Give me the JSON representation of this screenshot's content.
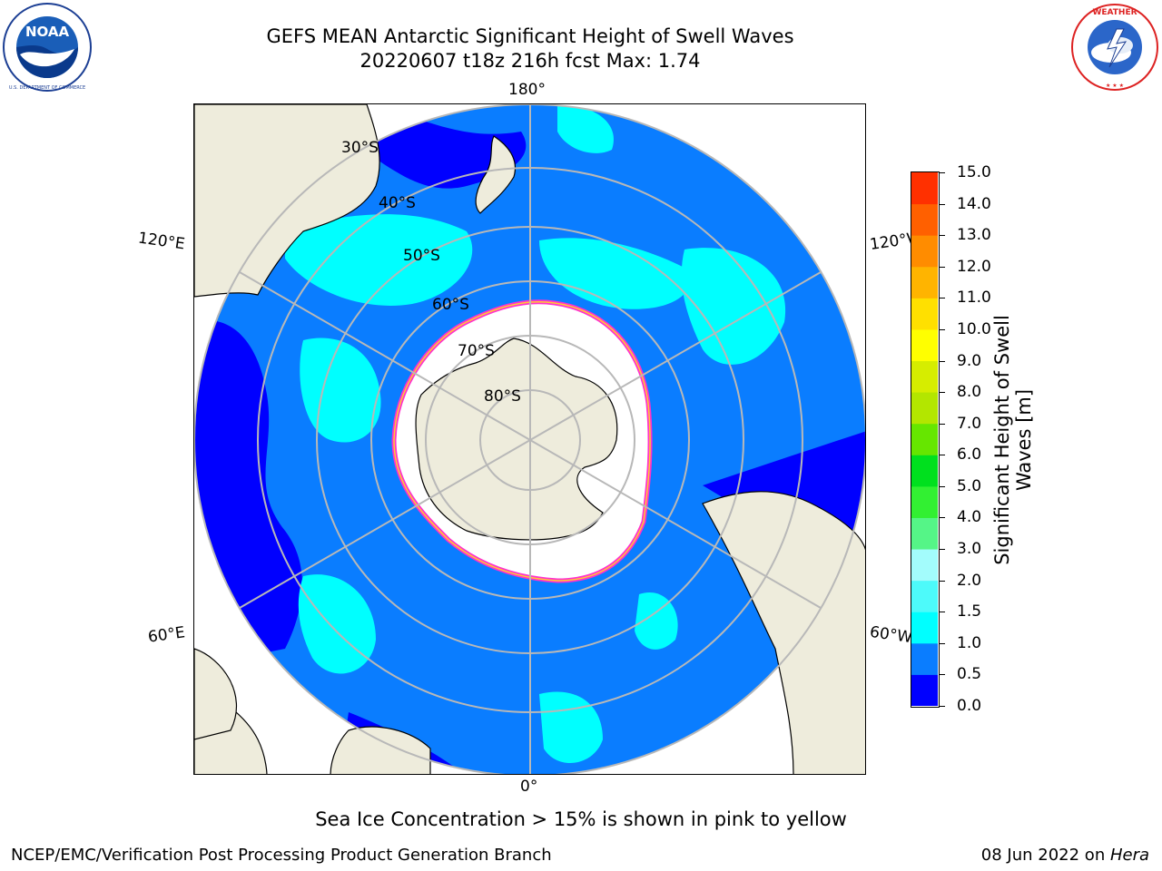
{
  "header": {
    "title_line1": "GEFS MEAN Antarctic Significant Height of Swell Waves",
    "title_line2": "20220607 t18z 216h fcst   Max: 1.74"
  },
  "logos": {
    "left": {
      "icon": "noaa-logo-icon",
      "text": "NOAA",
      "ring_text": "NATIONAL OCEANIC AND ATMOSPHERIC ADMINISTRATION · U.S. DEPARTMENT OF COMMERCE"
    },
    "right": {
      "icon": "nws-logo-icon",
      "ring_text": "NATIONAL WEATHER SERVICE"
    }
  },
  "map": {
    "projection": "south-polar-stereographic",
    "longitude_labels": {
      "top": "180°",
      "bottom": "0°",
      "upper_left": "120°E",
      "upper_right": "120°W",
      "lower_left": "60°E",
      "lower_right": "60°W"
    },
    "latitude_labels": [
      "30°S",
      "40°S",
      "50°S",
      "60°S",
      "70°S",
      "80°S"
    ],
    "colors": {
      "ocean_dominant": "#0a7dff",
      "ocean_low": "#0000ff",
      "ocean_swell": "#00ffff",
      "sea_ice": "#ffffff",
      "ice_edge_pink": "#ff33cc",
      "ice_edge_yellow": "#ffcc33",
      "land": "#eeecdc",
      "gridline": "#b8b8b8"
    }
  },
  "colorbar": {
    "label_line1": "Significant Height of Swell",
    "label_line2": "Waves [m]",
    "ticks": [
      "0.0",
      "0.5",
      "1.0",
      "1.5",
      "2.0",
      "3.0",
      "4.0",
      "5.0",
      "6.0",
      "7.0",
      "8.0",
      "9.0",
      "10.0",
      "11.0",
      "12.0",
      "13.0",
      "14.0",
      "15.0"
    ],
    "colors": [
      "#0000ff",
      "#0a7dff",
      "#00ffff",
      "#4dfafa",
      "#a3fcfc",
      "#55f587",
      "#32f032",
      "#00e01e",
      "#66e600",
      "#b3e600",
      "#d6ed00",
      "#ffff00",
      "#ffe000",
      "#ffb400",
      "#ff8c00",
      "#ff6000",
      "#ff3000",
      "#ff0000"
    ]
  },
  "annotation": "Sea Ice Concentration > 15% is shown in pink to yellow",
  "footer": {
    "left": "NCEP/EMC/Verification Post Processing Product Generation Branch",
    "right_date": "08 Jun 2022 on ",
    "right_machine": "Hera"
  }
}
